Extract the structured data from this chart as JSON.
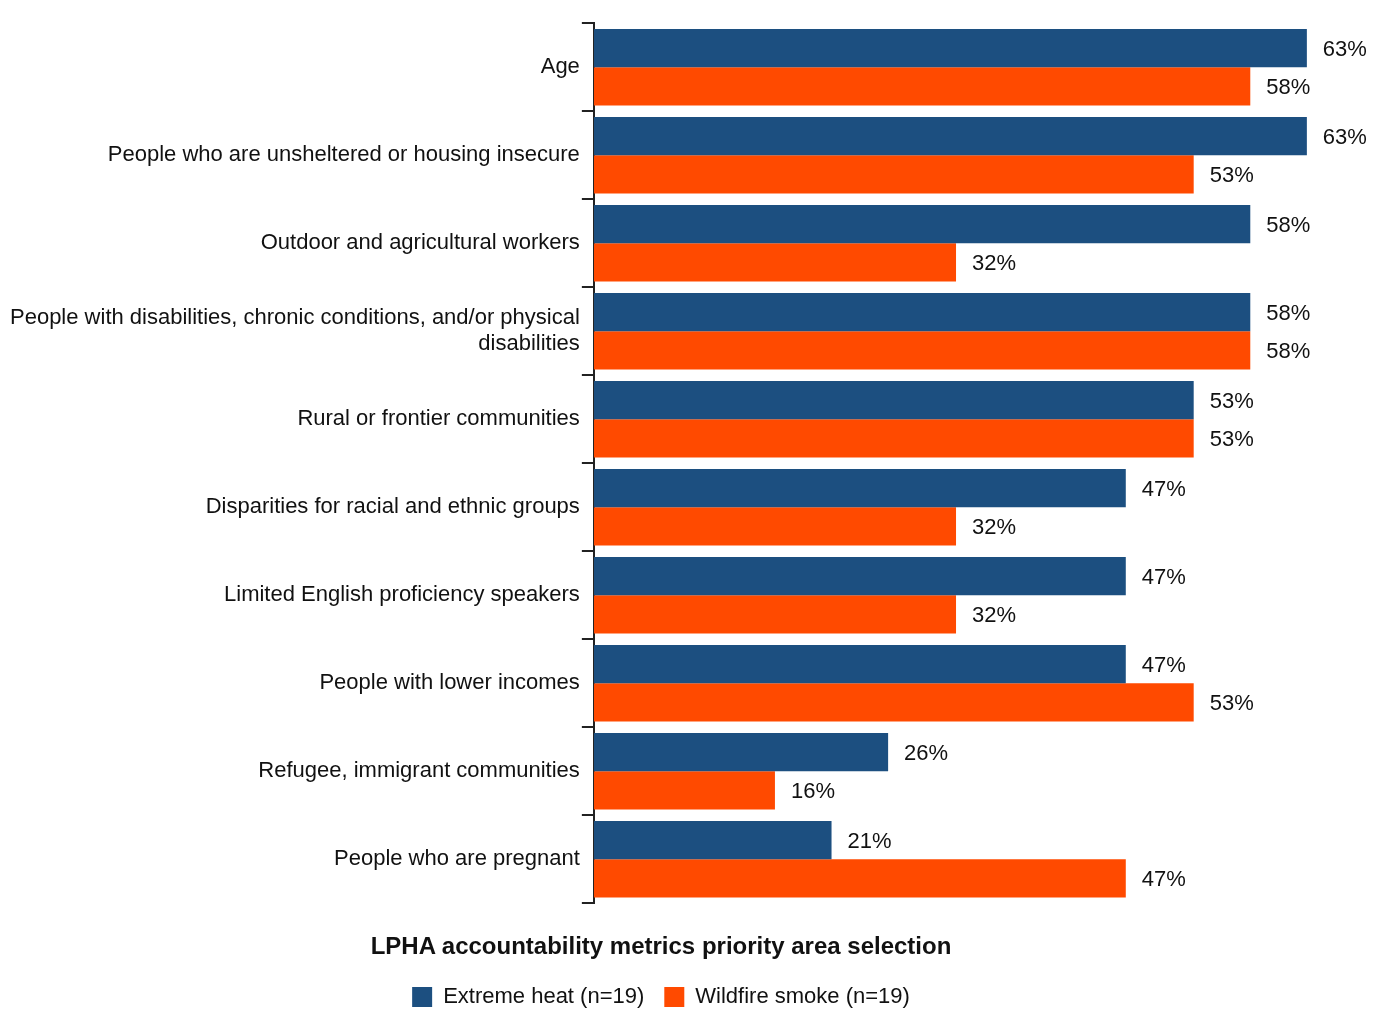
{
  "chart_data": {
    "type": "bar",
    "orientation": "horizontal",
    "title": "LPHA accountability metrics priority area selection",
    "categories": [
      "Age",
      "People who are unsheltered or housing insecure",
      "Outdoor and agricultural workers",
      "People with disabilities, chronic conditions, and/or physical disabilities",
      "Rural or frontier communities",
      "Disparities for racial and ethnic groups",
      "Limited English proficiency speakers",
      "People with lower incomes",
      "Refugee, immigrant communities",
      "People who are pregnant"
    ],
    "series": [
      {
        "name": "Extreme heat (n=19)",
        "color": "#1c4f80",
        "values": [
          63,
          63,
          58,
          58,
          53,
          47,
          47,
          47,
          26,
          21
        ],
        "value_labels": [
          "63%",
          "63%",
          "58%",
          "58%",
          "53%",
          "47%",
          "47%",
          "47%",
          "26%",
          "21%"
        ]
      },
      {
        "name": "Wildfire smoke (n=19)",
        "color": "#ff4a00",
        "values": [
          58,
          53,
          32,
          58,
          53,
          32,
          32,
          53,
          16,
          47
        ],
        "value_labels": [
          "58%",
          "53%",
          "32%",
          "58%",
          "53%",
          "32%",
          "32%",
          "53%",
          "16%",
          "47%"
        ]
      }
    ],
    "legend": "bottom",
    "grid": false
  }
}
